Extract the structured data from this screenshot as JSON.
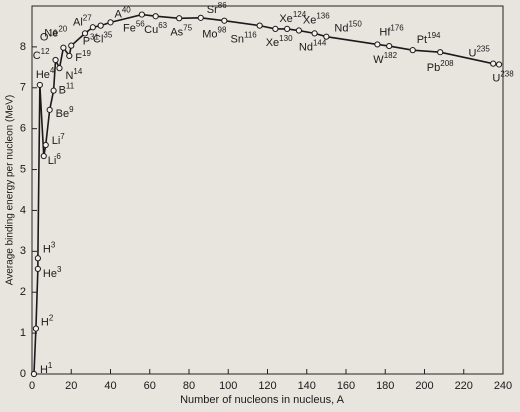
{
  "chart_data": {
    "type": "line",
    "xlabel": "Number of nucleons in nucleus, A",
    "ylabel": "Average binding energy per nucleon (MeV)",
    "xlim": [
      0,
      240
    ],
    "ylim": [
      0,
      9
    ],
    "xticks": [
      0,
      20,
      40,
      60,
      80,
      100,
      120,
      140,
      160,
      180,
      200,
      220,
      240
    ],
    "yticks": [
      0,
      1,
      2,
      3,
      4,
      5,
      6,
      7,
      8
    ],
    "color": "#1a1a1a",
    "symbols": [
      "H",
      "H",
      "He",
      "H",
      "He",
      "Li",
      "Li",
      "Be",
      "B",
      "C",
      "N",
      "O",
      "F",
      "Ne",
      "Al",
      "P",
      "Cl",
      "A",
      "Fe",
      "Cu",
      "As",
      "Sr",
      "Mo",
      "Sn",
      "Xe",
      "Xe",
      "Xe",
      "Nd",
      "Nd",
      "Hf",
      "W",
      "Pt",
      "Pb",
      "U",
      "U"
    ],
    "x": [
      1,
      2,
      3,
      3,
      4,
      6,
      7,
      9,
      11,
      12,
      14,
      16,
      19,
      20,
      27,
      31,
      35,
      40,
      56,
      63,
      75,
      86,
      98,
      116,
      124,
      130,
      136,
      144,
      150,
      176,
      182,
      194,
      208,
      235,
      238
    ],
    "values": [
      0,
      1.11,
      2.57,
      2.83,
      7.07,
      5.33,
      5.6,
      6.46,
      6.93,
      7.68,
      7.48,
      7.98,
      7.78,
      8.03,
      8.33,
      8.48,
      8.52,
      8.6,
      8.79,
      8.75,
      8.7,
      8.71,
      8.64,
      8.52,
      8.44,
      8.44,
      8.4,
      8.33,
      8.25,
      8.06,
      8.02,
      7.92,
      7.87,
      7.59,
      7.57
    ]
  }
}
